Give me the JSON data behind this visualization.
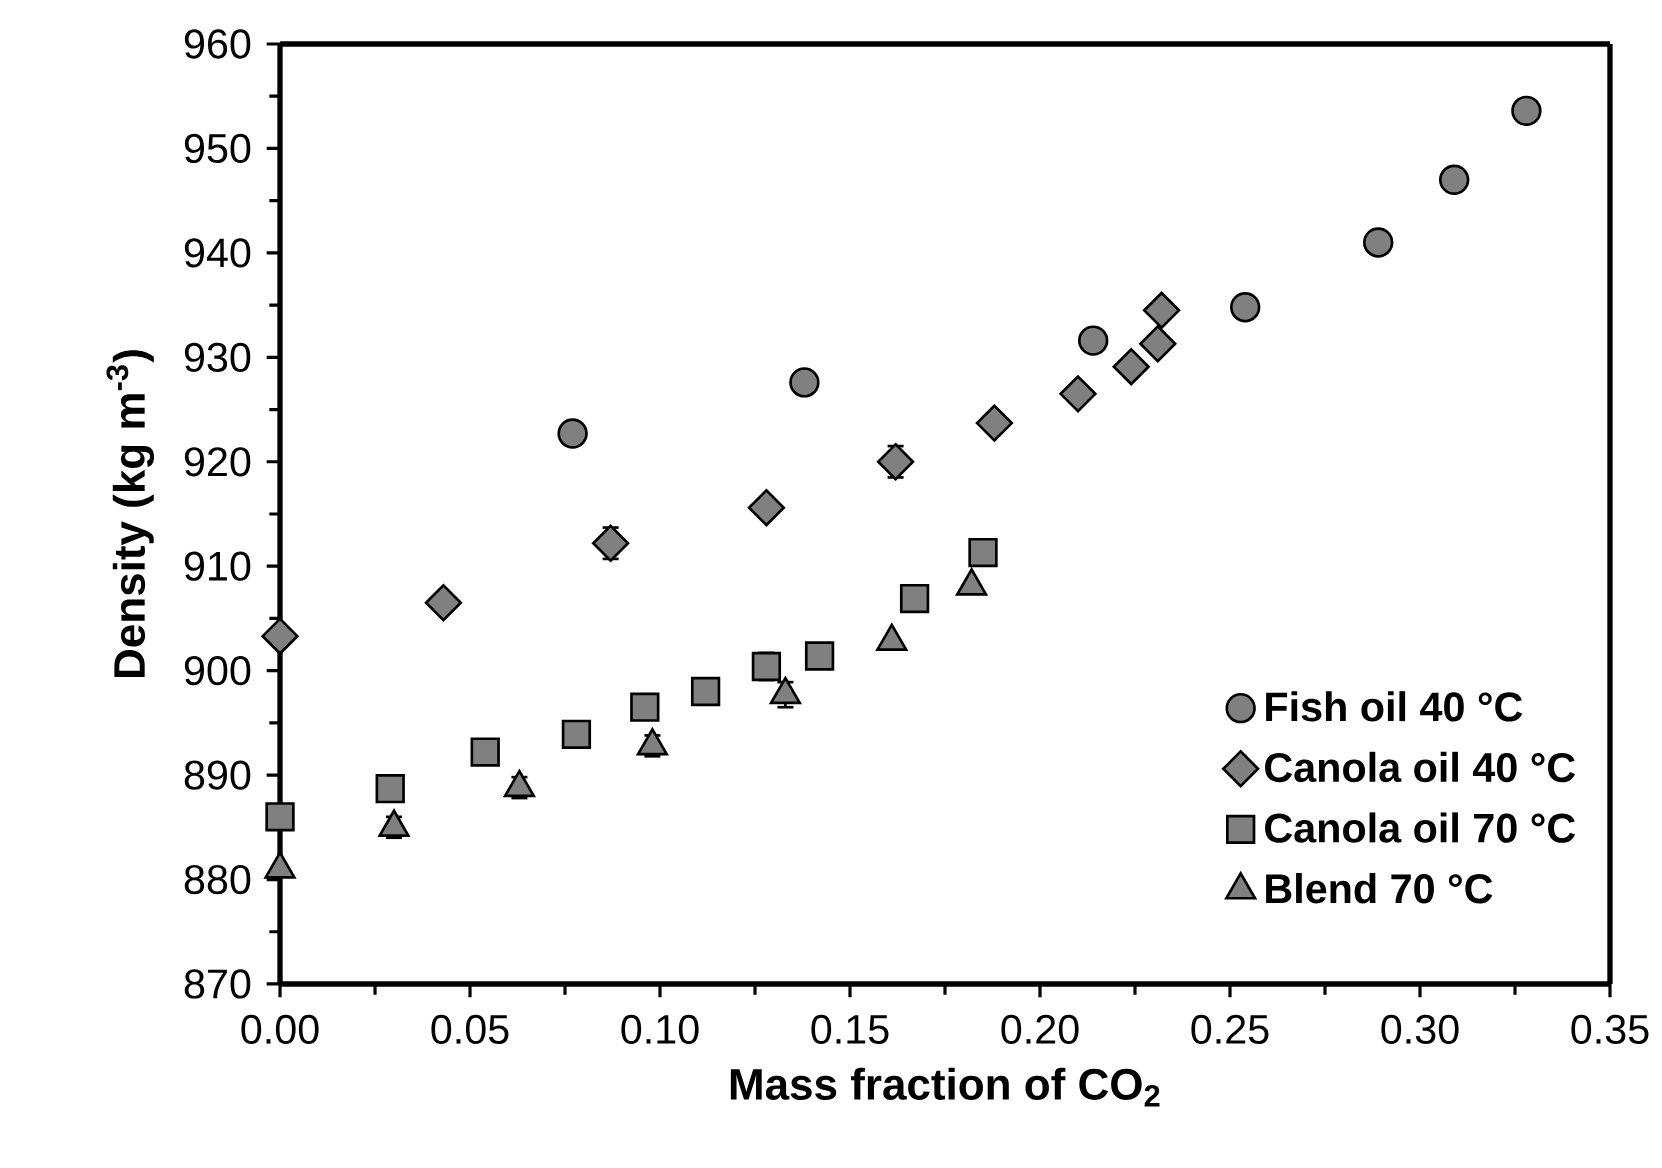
{
  "chart_data": {
    "type": "scatter",
    "xlabel": "Mass fraction of CO$_{2}$",
    "ylabel": "Density (kg m$^{-3}$)",
    "xlim": [
      0,
      0.35
    ],
    "xticks": [
      {
        "value": 0,
        "label": "0.00"
      },
      0.05,
      {
        "value": 0.1,
        "label": "0.10"
      },
      0.15,
      {
        "value": 0.2,
        "label": "0.20"
      },
      0.25,
      {
        "value": 0.3,
        "label": "0.30"
      },
      0.35
    ],
    "ylim": [
      870,
      960
    ],
    "yticks": [
      870,
      880,
      890,
      900,
      910,
      920,
      930,
      940,
      950,
      960
    ],
    "grid": false,
    "legend": "bottom right",
    "series": [
      {
        "name": "Fish oil 40 °C",
        "color": "#808080",
        "marker": "circle",
        "x": [
          0.077,
          0.138,
          0.214,
          0.254,
          0.289,
          0.309,
          0.328
        ],
        "values": [
          922.7,
          927.6,
          931.6,
          934.8,
          941.0,
          947.0,
          953.6
        ]
      },
      {
        "name": "Canola oil 40 °C",
        "color": "#808080",
        "marker": "diamond",
        "x": [
          0,
          0.043,
          0.087,
          0.128,
          0.162,
          0.188,
          0.21,
          0.224,
          0.231,
          0.232
        ],
        "values": [
          903.3,
          906.5,
          912.2,
          915.6,
          920.0,
          923.7,
          926.5,
          929.1,
          931.3,
          934.5
        ],
        "errors": [
          null,
          null,
          1.5,
          null,
          1.5,
          null,
          null,
          null,
          null,
          null
        ]
      },
      {
        "name": "Canola oil 70 °C",
        "color": "#808080",
        "marker": "square",
        "x": [
          0,
          0.029,
          0.054,
          0.078,
          0.096,
          0.112,
          0.128,
          0.142,
          0.167,
          0.185
        ],
        "values": [
          886.0,
          888.7,
          892.2,
          893.9,
          896.5,
          898.0,
          900.4,
          901.4,
          906.9,
          911.3
        ],
        "errors": [
          null,
          1,
          null,
          null,
          null,
          null,
          1.3,
          null,
          null,
          null
        ]
      },
      {
        "name": "Blend 70 °C",
        "color": "#808080",
        "marker": "triangle",
        "x": [
          0,
          0.03,
          0.063,
          0.098,
          0.133,
          0.161,
          0.182
        ],
        "values": [
          881.0,
          885.0,
          888.8,
          892.8,
          897.7,
          902.8,
          908.1
        ],
        "errors": [
          null,
          1,
          1,
          1,
          1.2,
          null,
          null
        ]
      }
    ]
  }
}
